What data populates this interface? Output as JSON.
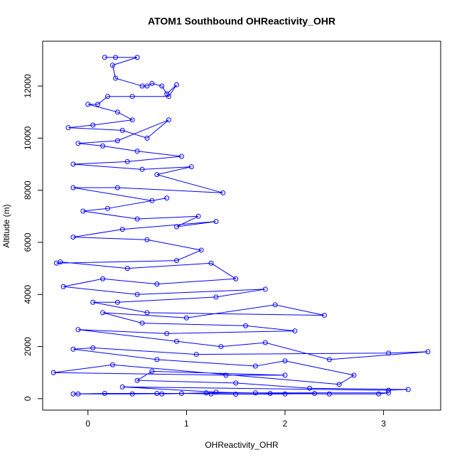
{
  "chart_data": {
    "type": "line",
    "title": "ATOM1 Southbound OHReactivity_OHR",
    "xlabel": "OHReactivity_OHR",
    "ylabel": "Altitude (m)",
    "xlim": [
      -0.46,
      3.58
    ],
    "ylim": [
      -440,
      13720
    ],
    "xticks": [
      0,
      1,
      2,
      3
    ],
    "yticks": [
      0,
      2000,
      4000,
      6000,
      8000,
      10000,
      12000
    ],
    "series": [
      {
        "color": "#0000ff",
        "x": [
          0.17,
          0.28,
          0.5,
          0.25,
          0.28,
          0.55,
          0.6,
          0.65,
          0.75,
          0.8,
          0.9,
          0.82,
          0.45,
          0.2,
          0.1,
          0.0,
          0.3,
          0.45,
          0.05,
          -0.2,
          0.35,
          0.6,
          0.82,
          0.3,
          -0.1,
          0.15,
          0.5,
          0.95,
          0.4,
          -0.15,
          0.55,
          1.05,
          0.7,
          1.37,
          0.3,
          -0.15,
          0.65,
          0.8,
          0.2,
          -0.05,
          0.5,
          1.12,
          0.9,
          1.3,
          0.35,
          -0.15,
          0.6,
          1.15,
          0.9,
          -0.32,
          -0.28,
          0.4,
          1.25,
          1.5,
          0.7,
          0.15,
          -0.25,
          0.5,
          1.8,
          1.3,
          0.3,
          0.05,
          0.6,
          2.4,
          1.9,
          1.0,
          0.15,
          0.55,
          1.6,
          2.1,
          0.8,
          -0.1,
          0.9,
          1.35,
          1.8,
          2.45,
          3.45,
          3.05,
          1.1,
          0.05,
          -0.15,
          0.7,
          1.7,
          2.0,
          2.7,
          2.55,
          0.25,
          -0.35,
          1.4,
          2.0,
          0.65,
          0.5,
          1.5,
          2.25,
          3.25,
          3.05,
          0.35,
          1.3,
          1.85,
          2.45,
          2.95,
          3.05,
          1.7,
          0.7,
          0.17,
          -0.15,
          -0.1,
          0.45,
          0.95,
          1.25,
          1.5,
          2.0,
          2.3,
          1.2,
          0.75
        ],
        "values": [
          13100,
          13100,
          13100,
          12800,
          12300,
          12000,
          12000,
          12100,
          12000,
          11700,
          12050,
          11600,
          11600,
          11600,
          11300,
          11300,
          11000,
          10700,
          10500,
          10400,
          10300,
          10000,
          10700,
          9900,
          9800,
          9700,
          9500,
          9300,
          9100,
          9000,
          8800,
          8900,
          8600,
          7900,
          8100,
          8100,
          7600,
          7700,
          7300,
          7200,
          6900,
          7000,
          6600,
          6800,
          6500,
          6200,
          6100,
          5700,
          5300,
          5200,
          5250,
          5000,
          5200,
          4600,
          4400,
          4600,
          4300,
          4000,
          4200,
          3900,
          3700,
          3700,
          3300,
          3200,
          3600,
          3100,
          3300,
          2900,
          2800,
          2600,
          2500,
          2650,
          2200,
          2000,
          2150,
          1500,
          1800,
          1750,
          1700,
          1950,
          1900,
          1500,
          1250,
          1450,
          900,
          550,
          1300,
          1000,
          900,
          900,
          1050,
          700,
          600,
          400,
          350,
          320,
          450,
          250,
          200,
          180,
          180,
          220,
          220,
          200,
          200,
          180,
          180,
          180,
          200,
          180,
          170,
          180,
          200,
          220,
          180
        ]
      }
    ]
  }
}
